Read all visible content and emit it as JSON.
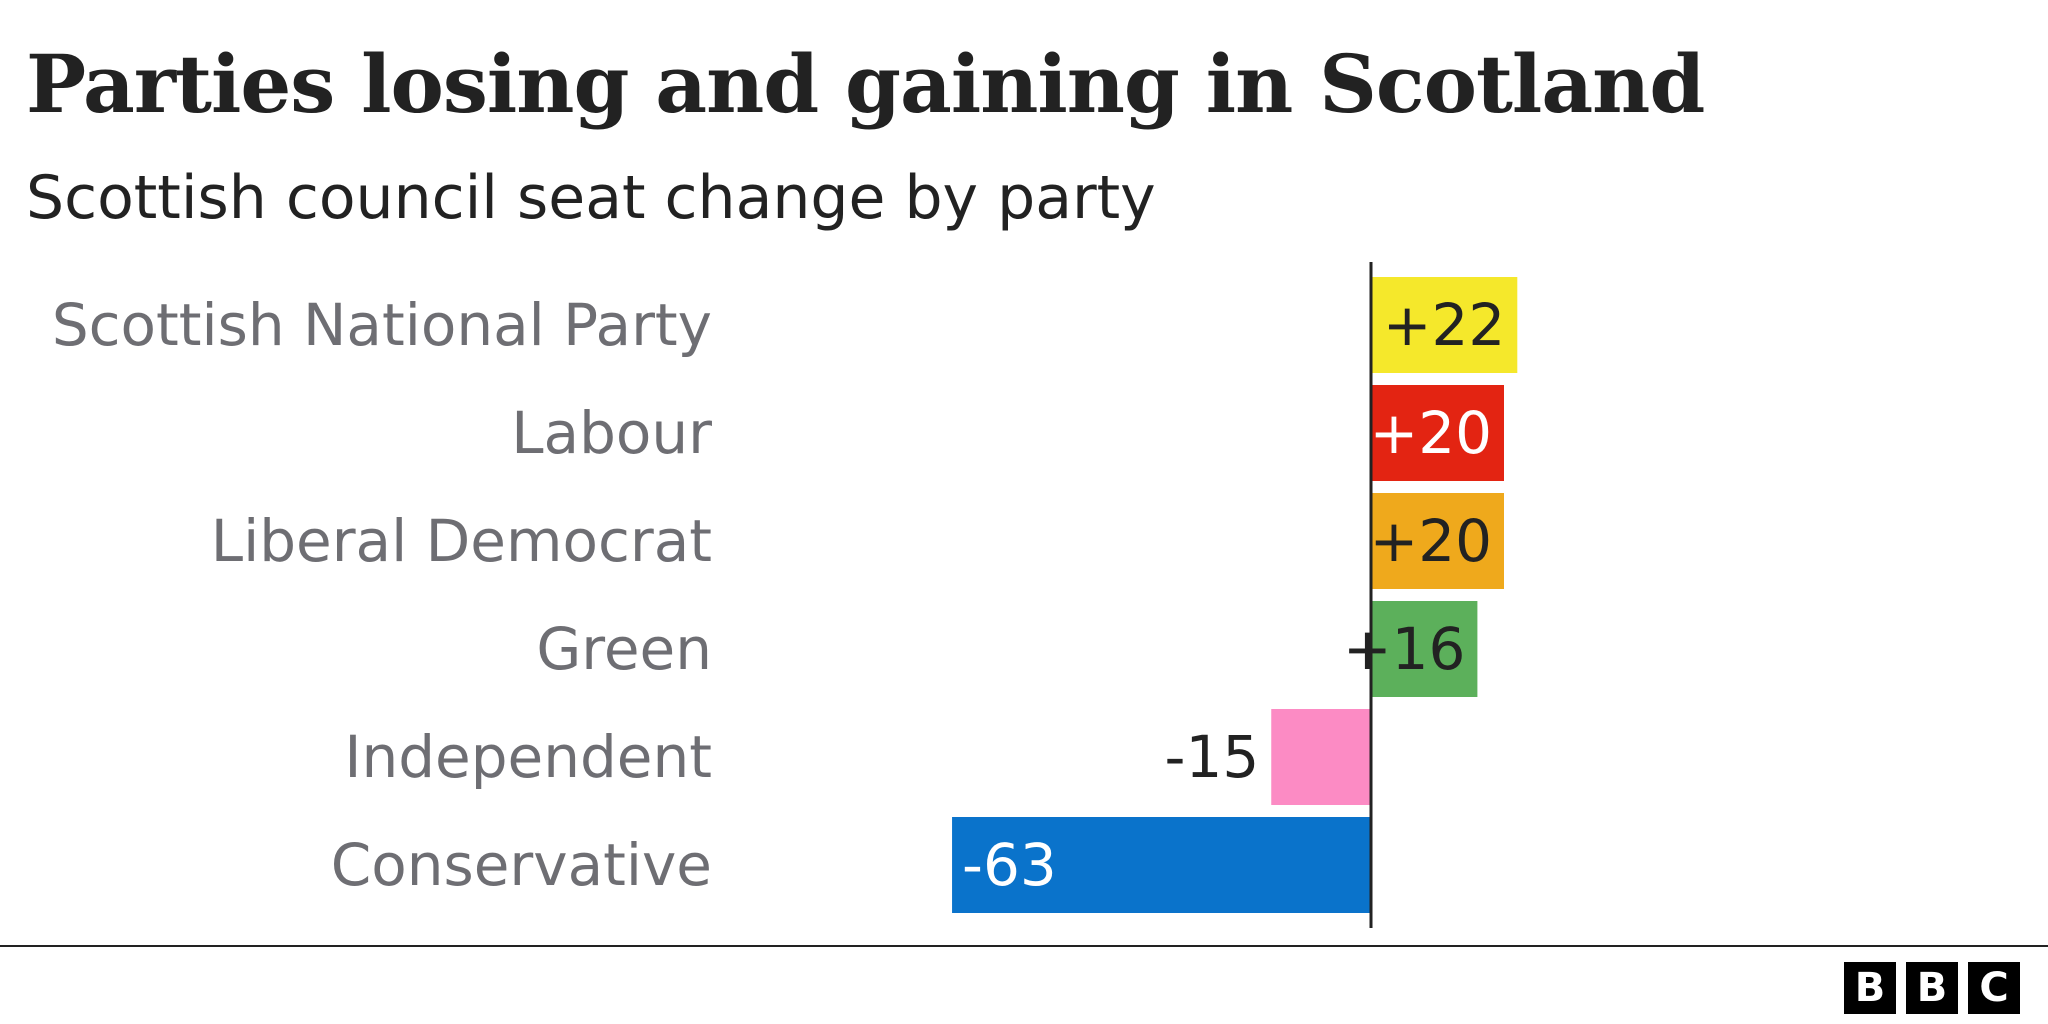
{
  "chart_data": {
    "type": "bar",
    "orientation": "horizontal",
    "title": "Parties losing and gaining in Scotland",
    "subtitle": "Scottish council seat change by party",
    "categories": [
      "Scottish National Party",
      "Labour",
      "Liberal Democrat",
      "Green",
      "Independent",
      "Conservative"
    ],
    "values": [
      22,
      20,
      20,
      16,
      -15,
      -63
    ],
    "value_labels": [
      "+22",
      "+20",
      "+20",
      "+16",
      "-15",
      "-63"
    ],
    "colors": [
      "#f5e82b",
      "#e32412",
      "#efa91c",
      "#5cb05b",
      "#fc8bc4",
      "#0a73cb"
    ],
    "label_colors": [
      "#222222",
      "#ffffff",
      "#222222",
      "#222222",
      "#222222",
      "#ffffff"
    ],
    "label_inside": [
      true,
      true,
      true,
      true,
      false,
      true
    ],
    "xlim": [
      -63,
      22
    ],
    "grid": false,
    "legend": "none"
  },
  "logo": {
    "letters": [
      "B",
      "B",
      "C"
    ]
  }
}
